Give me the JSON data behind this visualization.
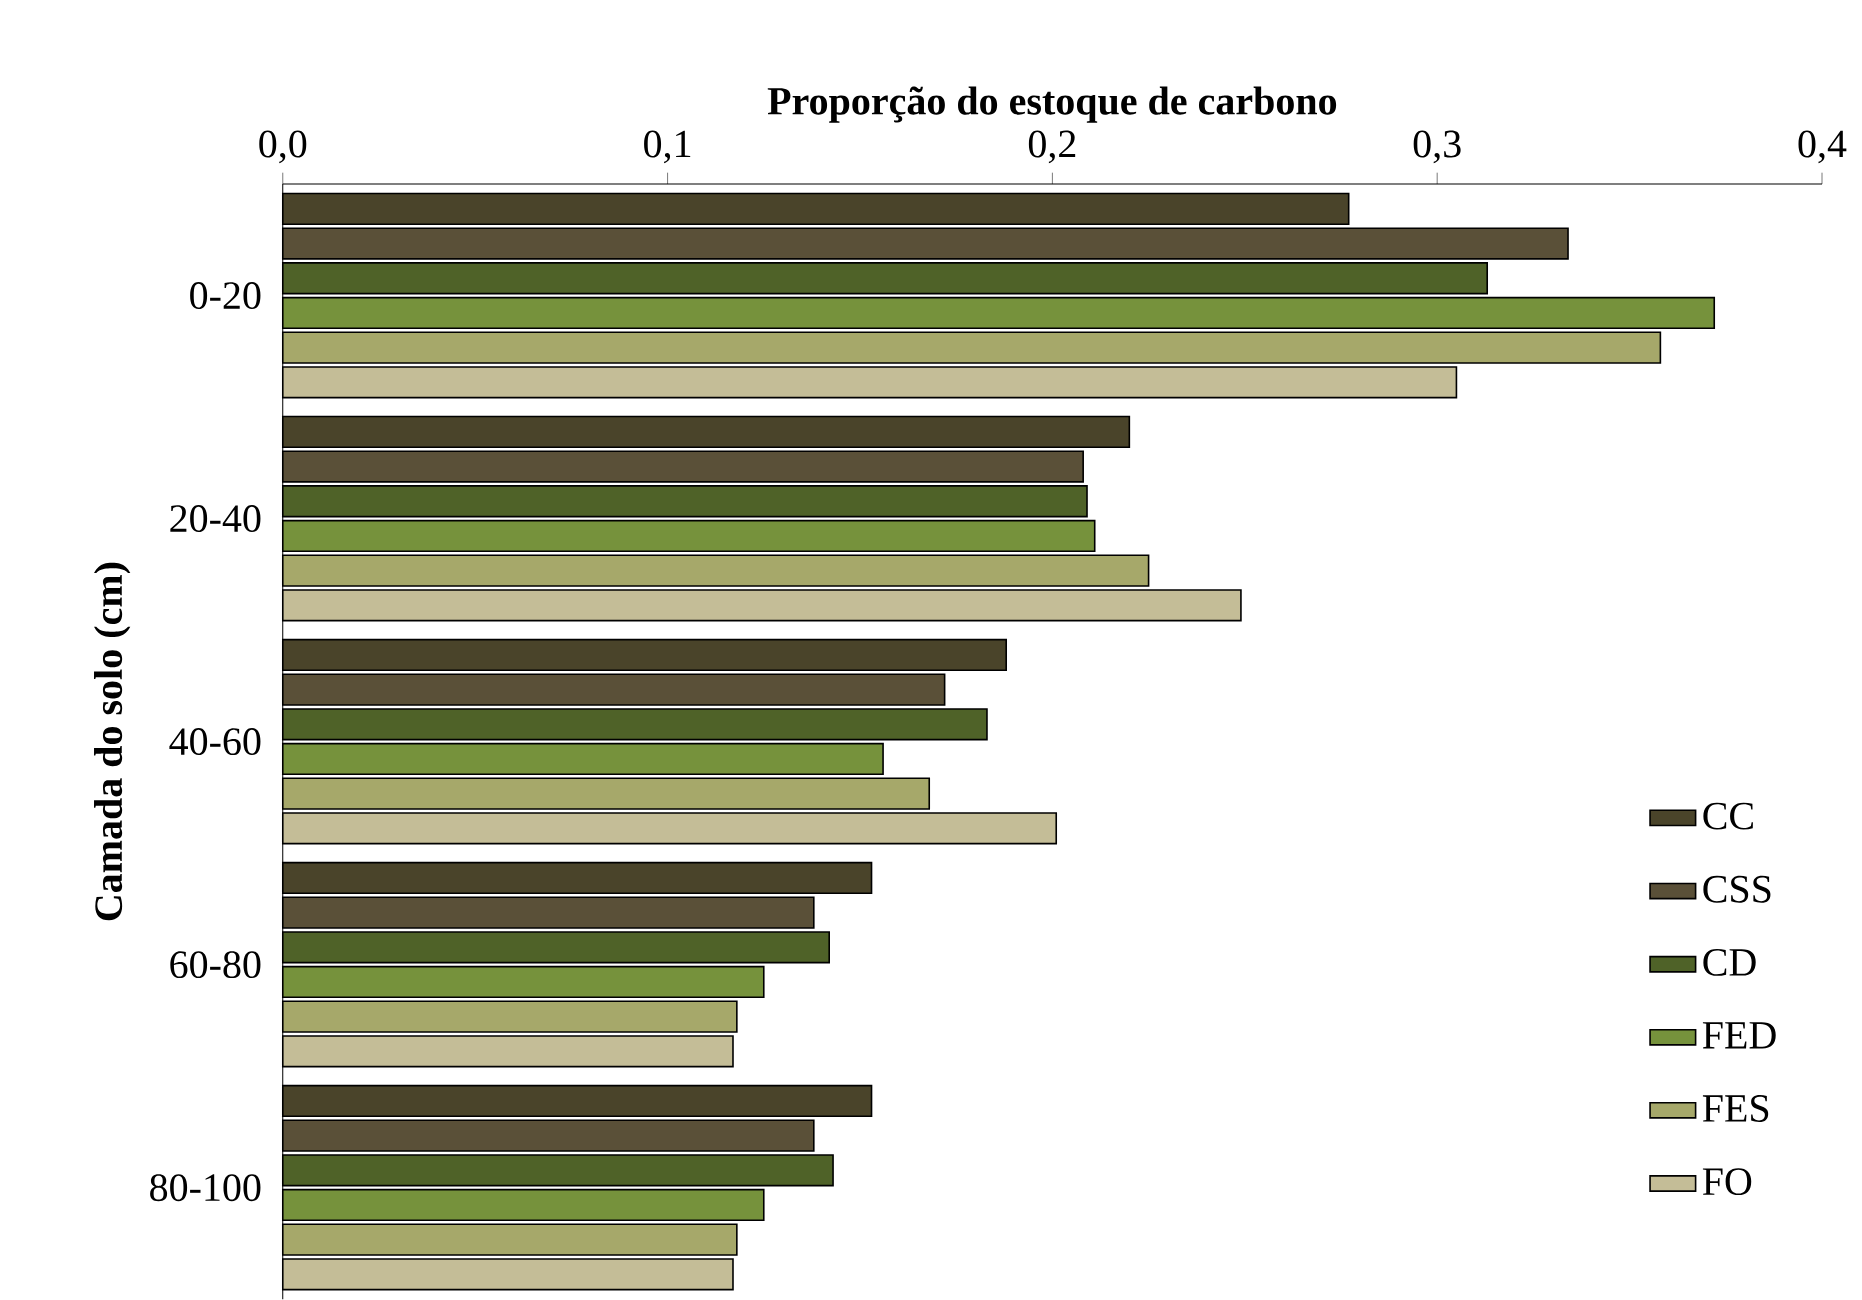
{
  "chart_data": {
    "type": "bar",
    "orientation": "horizontal",
    "xlabel": "Proporção do estoque de carbono",
    "ylabel": "Camada do solo (cm)",
    "categories": [
      "0-20",
      "20-40",
      "40-60",
      "60-80",
      "80-100"
    ],
    "series": [
      {
        "name": "CC",
        "color": "#4a442a",
        "values": [
          0.277,
          0.22,
          0.188,
          0.153,
          0.153
        ]
      },
      {
        "name": "CSS",
        "color": "#5a5038",
        "values": [
          0.334,
          0.208,
          0.172,
          0.138,
          0.138
        ]
      },
      {
        "name": "CD",
        "color": "#4f6228",
        "values": [
          0.313,
          0.209,
          0.183,
          0.142,
          0.143
        ]
      },
      {
        "name": "FED",
        "color": "#76923c",
        "values": [
          0.372,
          0.211,
          0.156,
          0.125,
          0.125
        ]
      },
      {
        "name": "FES",
        "color": "#a6a86a",
        "values": [
          0.358,
          0.225,
          0.168,
          0.118,
          0.118
        ]
      },
      {
        "name": "FO",
        "color": "#c4bd97",
        "values": [
          0.305,
          0.249,
          0.201,
          0.117,
          0.117
        ]
      }
    ],
    "xlim": [
      0,
      0.4
    ],
    "xticks": [
      {
        "value": 0,
        "label": "0,0"
      },
      {
        "value": 0.1,
        "label": "0,1"
      },
      {
        "value": 0.2,
        "label": "0,2"
      },
      {
        "value": 0.3,
        "label": "0,3"
      },
      {
        "value": 0.4,
        "label": "0,4"
      }
    ],
    "legend": "right",
    "grid": false
  }
}
